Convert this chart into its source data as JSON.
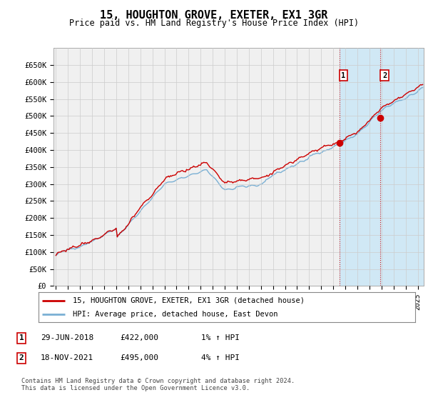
{
  "title": "15, HOUGHTON GROVE, EXETER, EX1 3GR",
  "subtitle": "Price paid vs. HM Land Registry's House Price Index (HPI)",
  "ylim": [
    0,
    700000
  ],
  "yticks": [
    0,
    50000,
    100000,
    150000,
    200000,
    250000,
    300000,
    350000,
    400000,
    450000,
    500000,
    550000,
    600000,
    650000
  ],
  "ytick_labels": [
    "£0",
    "£50K",
    "£100K",
    "£150K",
    "£200K",
    "£250K",
    "£300K",
    "£350K",
    "£400K",
    "£450K",
    "£500K",
    "£550K",
    "£600K",
    "£650K"
  ],
  "hpi_color": "#7ab0d4",
  "price_color": "#cc0000",
  "grid_color": "#cccccc",
  "bg_color": "#ffffff",
  "plot_bg_color": "#f0f0f0",
  "shade_color": "#d0e8f5",
  "legend_label_price": "15, HOUGHTON GROVE, EXETER, EX1 3GR (detached house)",
  "legend_label_hpi": "HPI: Average price, detached house, East Devon",
  "annotation1_label": "1",
  "annotation1_date": "29-JUN-2018",
  "annotation1_price": "£422,000",
  "annotation1_hpi": "1% ↑ HPI",
  "annotation2_label": "2",
  "annotation2_date": "18-NOV-2021",
  "annotation2_price": "£495,000",
  "annotation2_hpi": "4% ↑ HPI",
  "footer": "Contains HM Land Registry data © Crown copyright and database right 2024.\nThis data is licensed under the Open Government Licence v3.0.",
  "sale1_year": 2018.5,
  "sale1_y": 422000,
  "sale2_year": 2021.92,
  "sale2_y": 495000,
  "xmin": 1994.8,
  "xmax": 2025.5
}
